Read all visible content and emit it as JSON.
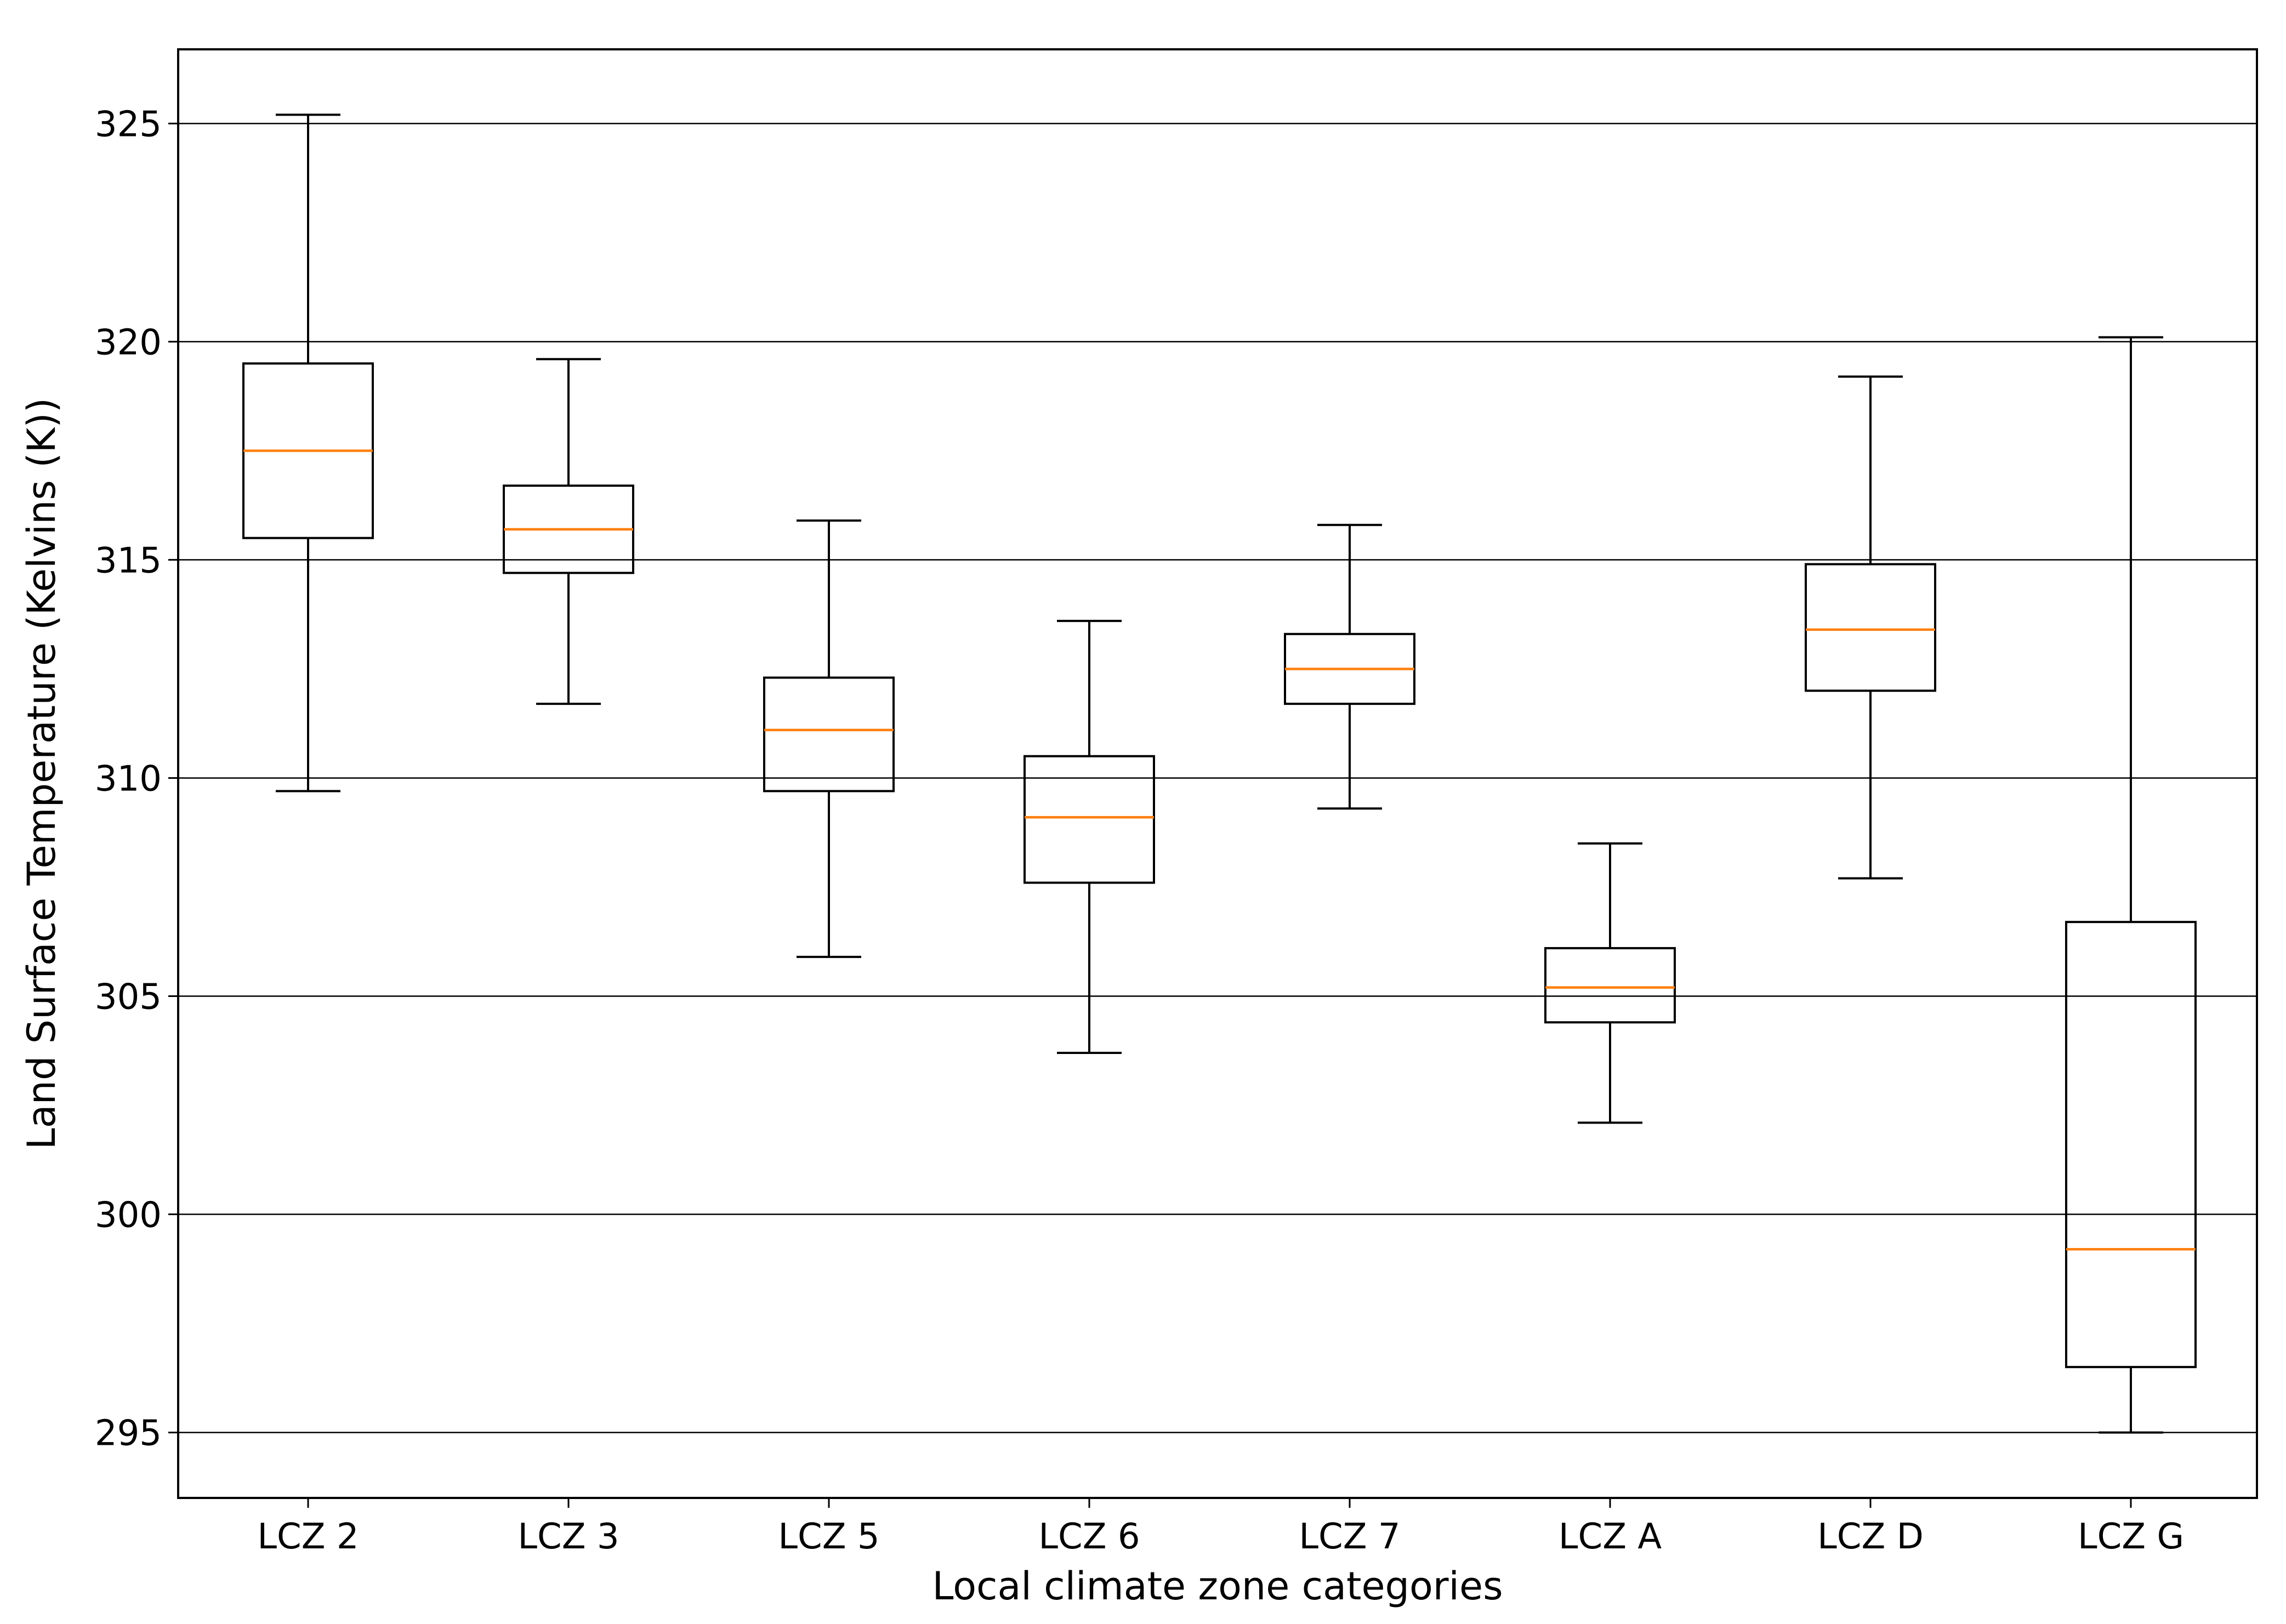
{
  "chart_data": {
    "type": "box",
    "title": "",
    "xlabel": "Local climate zone categories",
    "ylabel": "Land Surface Temperature (Kelvins (K))",
    "ylim": [
      293.5,
      326.7
    ],
    "yticks": [
      295,
      300,
      305,
      310,
      315,
      320,
      325
    ],
    "grid": "horizontal",
    "colors": {
      "box": "#000000",
      "median": "#ff7f0e",
      "grid": "#000000",
      "background": "#ffffff"
    },
    "categories": [
      "LCZ 2",
      "LCZ 3",
      "LCZ 5",
      "LCZ 6",
      "LCZ 7",
      "LCZ A",
      "LCZ D",
      "LCZ G"
    ],
    "boxes": [
      {
        "label": "LCZ 2",
        "whisker_low": 309.7,
        "q1": 315.5,
        "median": 317.5,
        "q3": 319.5,
        "whisker_high": 325.2
      },
      {
        "label": "LCZ 3",
        "whisker_low": 311.7,
        "q1": 314.7,
        "median": 315.7,
        "q3": 316.7,
        "whisker_high": 319.6
      },
      {
        "label": "LCZ 5",
        "whisker_low": 305.9,
        "q1": 309.7,
        "median": 311.1,
        "q3": 312.3,
        "whisker_high": 315.9
      },
      {
        "label": "LCZ 6",
        "whisker_low": 303.7,
        "q1": 307.6,
        "median": 309.1,
        "q3": 310.5,
        "whisker_high": 313.6
      },
      {
        "label": "LCZ 7",
        "whisker_low": 309.3,
        "q1": 311.7,
        "median": 312.5,
        "q3": 313.3,
        "whisker_high": 315.8
      },
      {
        "label": "LCZ A",
        "whisker_low": 302.1,
        "q1": 304.4,
        "median": 305.2,
        "q3": 306.1,
        "whisker_high": 308.5
      },
      {
        "label": "LCZ D",
        "whisker_low": 307.7,
        "q1": 312.0,
        "median": 313.4,
        "q3": 314.9,
        "whisker_high": 319.2
      },
      {
        "label": "LCZ G",
        "whisker_low": 295.0,
        "q1": 296.5,
        "median": 299.2,
        "q3": 306.7,
        "whisker_high": 320.1
      }
    ]
  }
}
